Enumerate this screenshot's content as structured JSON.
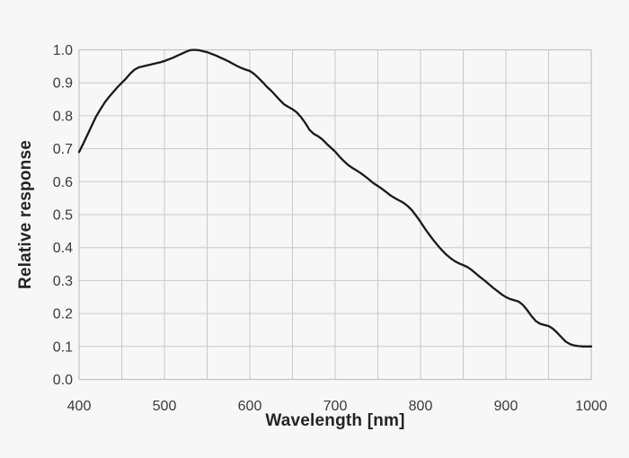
{
  "style": {
    "page_background": "#f7f7f7",
    "grid_color": "#c8c8c8",
    "border_color": "#c2c2c2",
    "curve_color": "#191919",
    "tick_text_color": "#3a3a3a",
    "axis_title_color": "#242424"
  },
  "chart_data": {
    "type": "line",
    "title": "",
    "xlabel": "Wavelength [nm]",
    "ylabel": "Relative response",
    "xlim": [
      400,
      1000
    ],
    "ylim": [
      0.0,
      1.0
    ],
    "x_ticks": [
      400,
      500,
      600,
      700,
      800,
      900,
      1000
    ],
    "y_ticks": [
      0.0,
      0.1,
      0.2,
      0.3,
      0.4,
      0.5,
      0.6,
      0.7,
      0.8,
      0.9,
      1.0
    ],
    "x_grid_step": 50,
    "y_grid_step": 0.1,
    "grid": true,
    "legend": "none",
    "series": [
      {
        "name": "relative response",
        "color": "#191919",
        "points": [
          [
            400,
            0.69
          ],
          [
            405,
            0.716
          ],
          [
            410,
            0.743
          ],
          [
            415,
            0.771
          ],
          [
            420,
            0.798
          ],
          [
            425,
            0.82
          ],
          [
            430,
            0.84
          ],
          [
            435,
            0.857
          ],
          [
            440,
            0.872
          ],
          [
            445,
            0.887
          ],
          [
            450,
            0.9
          ],
          [
            455,
            0.913
          ],
          [
            460,
            0.928
          ],
          [
            465,
            0.94
          ],
          [
            470,
            0.947
          ],
          [
            475,
            0.95
          ],
          [
            480,
            0.953
          ],
          [
            485,
            0.956
          ],
          [
            490,
            0.959
          ],
          [
            495,
            0.962
          ],
          [
            500,
            0.966
          ],
          [
            505,
            0.971
          ],
          [
            510,
            0.976
          ],
          [
            515,
            0.982
          ],
          [
            520,
            0.988
          ],
          [
            525,
            0.994
          ],
          [
            530,
            0.999
          ],
          [
            535,
            1.0
          ],
          [
            540,
            0.999
          ],
          [
            545,
            0.996
          ],
          [
            550,
            0.993
          ],
          [
            555,
            0.988
          ],
          [
            560,
            0.983
          ],
          [
            565,
            0.977
          ],
          [
            570,
            0.971
          ],
          [
            575,
            0.965
          ],
          [
            580,
            0.958
          ],
          [
            585,
            0.951
          ],
          [
            590,
            0.945
          ],
          [
            595,
            0.94
          ],
          [
            600,
            0.936
          ],
          [
            605,
            0.927
          ],
          [
            610,
            0.915
          ],
          [
            615,
            0.902
          ],
          [
            620,
            0.888
          ],
          [
            625,
            0.876
          ],
          [
            630,
            0.862
          ],
          [
            635,
            0.848
          ],
          [
            640,
            0.835
          ],
          [
            645,
            0.827
          ],
          [
            650,
            0.82
          ],
          [
            655,
            0.81
          ],
          [
            660,
            0.796
          ],
          [
            665,
            0.778
          ],
          [
            670,
            0.757
          ],
          [
            675,
            0.745
          ],
          [
            680,
            0.738
          ],
          [
            685,
            0.728
          ],
          [
            690,
            0.715
          ],
          [
            695,
            0.703
          ],
          [
            700,
            0.691
          ],
          [
            705,
            0.676
          ],
          [
            710,
            0.663
          ],
          [
            715,
            0.651
          ],
          [
            720,
            0.642
          ],
          [
            725,
            0.634
          ],
          [
            730,
            0.626
          ],
          [
            735,
            0.616
          ],
          [
            740,
            0.606
          ],
          [
            745,
            0.595
          ],
          [
            750,
            0.587
          ],
          [
            755,
            0.578
          ],
          [
            760,
            0.568
          ],
          [
            765,
            0.558
          ],
          [
            770,
            0.55
          ],
          [
            775,
            0.543
          ],
          [
            780,
            0.536
          ],
          [
            785,
            0.526
          ],
          [
            790,
            0.513
          ],
          [
            795,
            0.496
          ],
          [
            800,
            0.478
          ],
          [
            805,
            0.458
          ],
          [
            810,
            0.44
          ],
          [
            815,
            0.423
          ],
          [
            820,
            0.407
          ],
          [
            825,
            0.392
          ],
          [
            830,
            0.379
          ],
          [
            835,
            0.368
          ],
          [
            840,
            0.359
          ],
          [
            845,
            0.352
          ],
          [
            850,
            0.347
          ],
          [
            855,
            0.341
          ],
          [
            860,
            0.332
          ],
          [
            865,
            0.321
          ],
          [
            870,
            0.31
          ],
          [
            875,
            0.3
          ],
          [
            880,
            0.289
          ],
          [
            885,
            0.278
          ],
          [
            890,
            0.268
          ],
          [
            895,
            0.258
          ],
          [
            900,
            0.25
          ],
          [
            905,
            0.244
          ],
          [
            910,
            0.24
          ],
          [
            915,
            0.236
          ],
          [
            920,
            0.226
          ],
          [
            925,
            0.21
          ],
          [
            930,
            0.192
          ],
          [
            935,
            0.177
          ],
          [
            940,
            0.169
          ],
          [
            945,
            0.165
          ],
          [
            950,
            0.162
          ],
          [
            955,
            0.154
          ],
          [
            960,
            0.142
          ],
          [
            965,
            0.128
          ],
          [
            970,
            0.115
          ],
          [
            975,
            0.107
          ],
          [
            980,
            0.103
          ],
          [
            985,
            0.101
          ],
          [
            990,
            0.1
          ],
          [
            995,
            0.1
          ],
          [
            1000,
            0.1
          ]
        ]
      }
    ]
  }
}
